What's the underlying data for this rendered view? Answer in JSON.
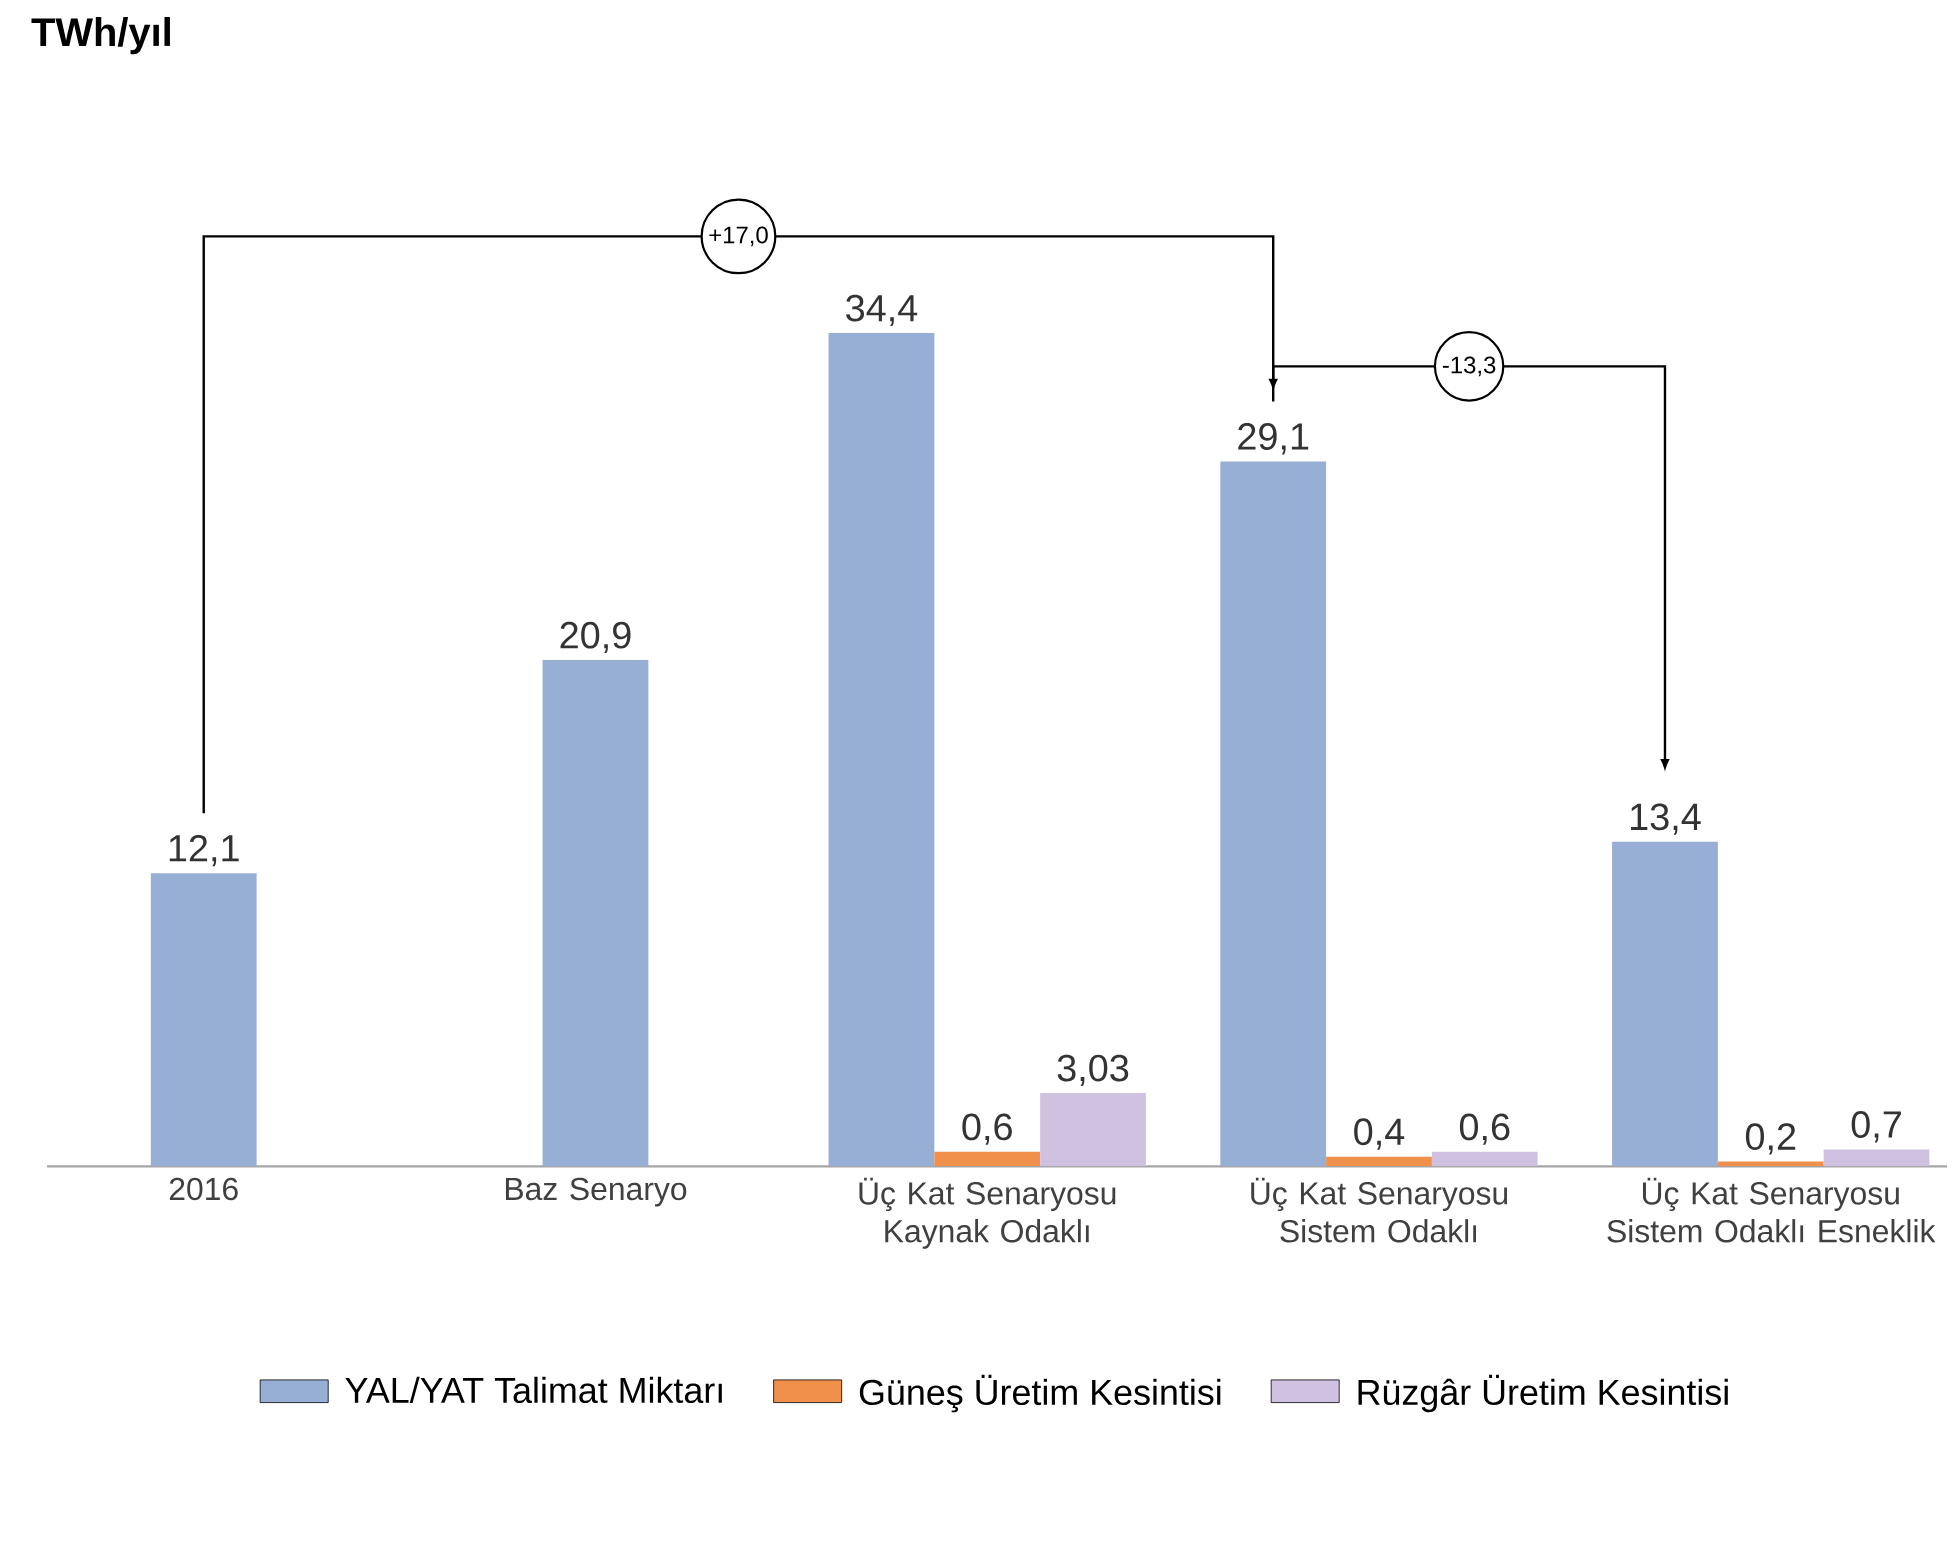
{
  "chart_data": {
    "type": "bar",
    "categories": [
      "2016",
      "Baz Senaryo",
      "Üç Kat Senaryosu Kaynak Odaklı",
      "Üç Kat Senaryosu Sistem Odaklı",
      "Üç Kat Senaryosu Sistem Odaklı Esneklik"
    ],
    "series": [
      {
        "name": "YAL/YAT Talimat Miktarı",
        "color": "#97aed5",
        "values": [
          12.1,
          20.9,
          34.4,
          29.1,
          13.4
        ],
        "value_labels": [
          "12,1",
          "20,9",
          "34,4",
          "29,1",
          "13,4"
        ]
      },
      {
        "name": "Güneş Üretim Kesintisi",
        "color": "#f0904a",
        "values": [
          null,
          null,
          0.6,
          0.4,
          0.2
        ],
        "value_labels": [
          null,
          null,
          "0,6",
          "0,4",
          "0,2"
        ]
      },
      {
        "name": "Rüzgâr Üretim Kesintisi",
        "color": "#cfc2e0",
        "values": [
          null,
          null,
          3.03,
          0.6,
          0.7
        ],
        "value_labels": [
          null,
          null,
          "3,03",
          "0,6",
          "0,7"
        ]
      }
    ],
    "annotations": [
      "TWh/yıl",
      "+17,0",
      "-13,3"
    ],
    "legend": "bottom"
  }
}
